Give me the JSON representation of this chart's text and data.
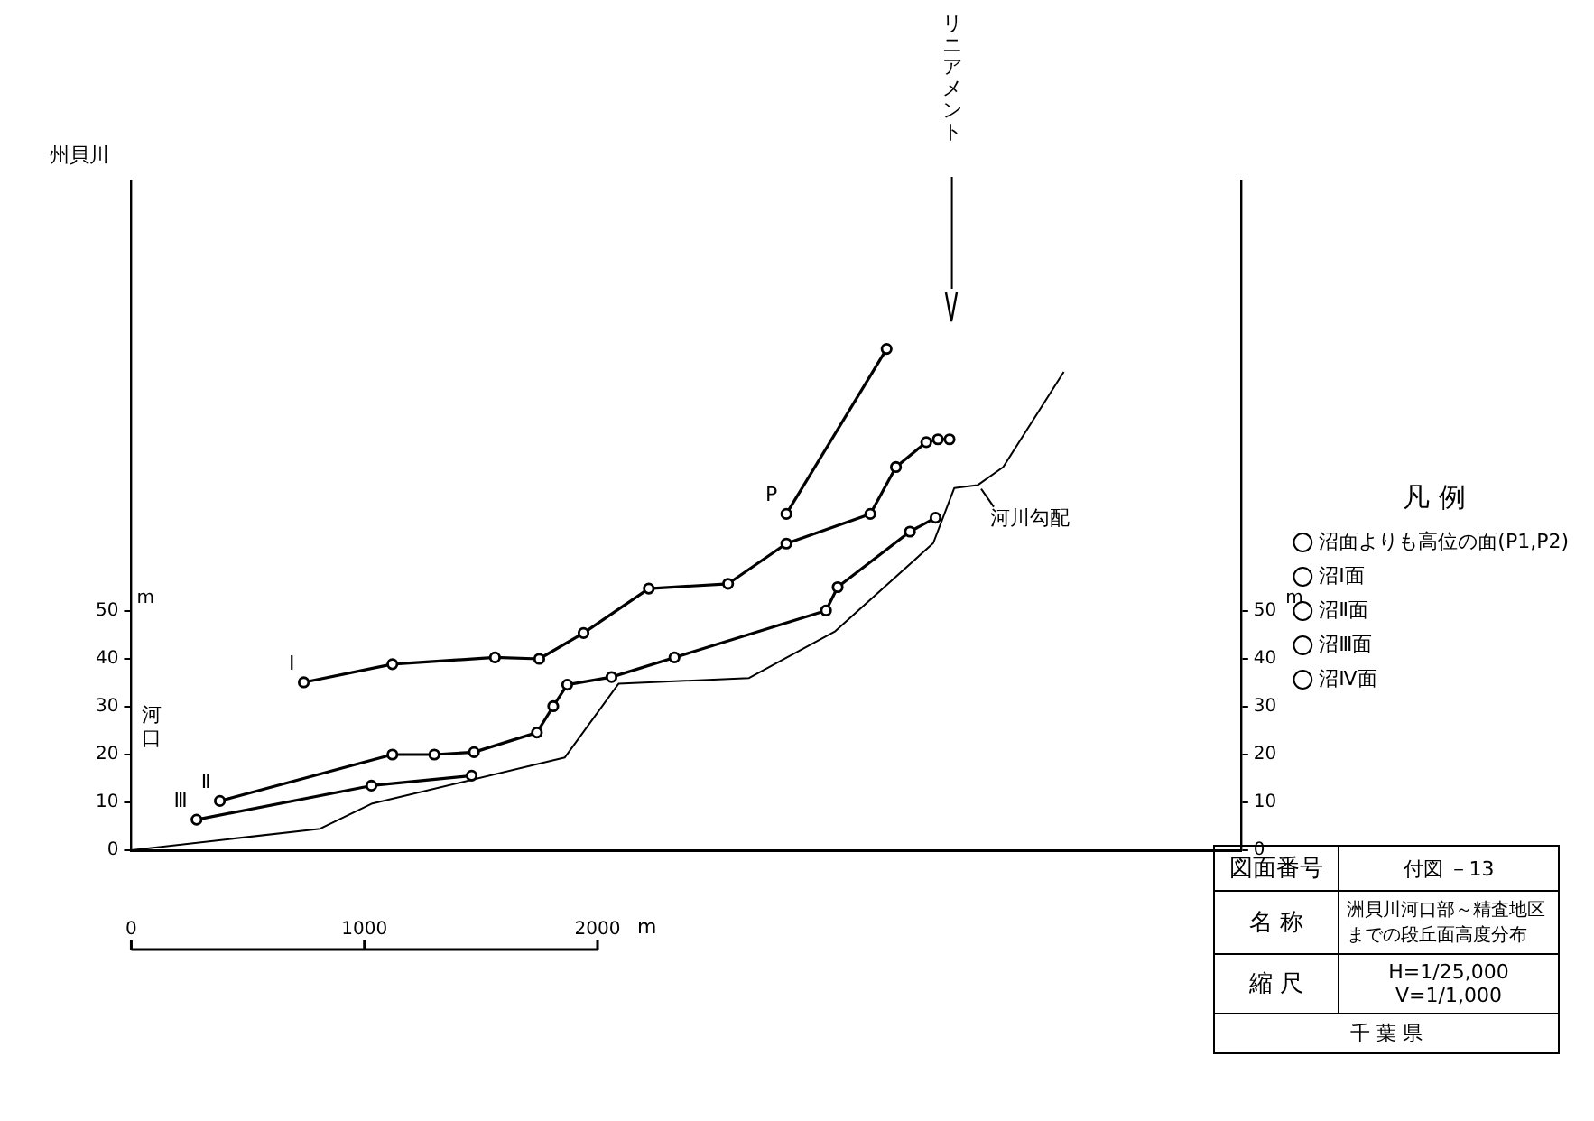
{
  "chart_data": {
    "type": "line",
    "title": "洲貝川河口部～精査地区までの段丘面高度分布",
    "xlabel": "m",
    "ylabel": "m",
    "y2label": "m",
    "legend_title": "凡 例",
    "legend": "right",
    "grid": false,
    "marker": "circle",
    "line_style": "solid",
    "xlim": [
      0,
      4760
    ],
    "xticks": [
      0,
      1000,
      2000
    ],
    "ylim": [
      0,
      140
    ],
    "yticks": [
      0,
      10,
      20,
      30,
      40,
      50
    ],
    "y2lim": [
      0,
      140
    ],
    "y2ticks": [
      0,
      10,
      20,
      30,
      40,
      50
    ],
    "series": [
      {
        "name": "沼面よりも高位の面(P1,P2)",
        "color": "#000000",
        "x": [
          2810,
          3240
        ],
        "values": [
          70.3,
          104.8
        ]
      },
      {
        "name": "沼Ⅰ面",
        "color": "#000000",
        "x": [
          740,
          1120,
          1560,
          1750,
          1940,
          2220,
          2560,
          2810,
          3170,
          3280,
          3410,
          3460,
          3510
        ],
        "values": [
          35.1,
          38.9,
          40.3,
          40,
          45.4,
          54.7,
          55.7,
          64.1,
          70.3,
          80.1,
          85.3,
          85.9,
          85.9
        ]
      },
      {
        "name": "沼Ⅱ面",
        "color": "#000000",
        "x": [
          380,
          1120,
          1300,
          1470,
          1740,
          1810,
          1870,
          2060,
          2330,
          2980,
          3030,
          3340,
          3450
        ],
        "values": [
          10.3,
          20,
          20,
          20.5,
          24.6,
          30.1,
          34.6,
          36.2,
          40.3,
          50.1,
          55,
          66.6,
          69.5
        ]
      },
      {
        "name": "沼Ⅲ面",
        "color": "#000000",
        "x": [
          280,
          1030,
          1460
        ],
        "values": [
          6.4,
          13.5,
          15.6
        ]
      },
      {
        "name": "沼Ⅳ面",
        "color": "#000000"
      },
      {
        "name": "河川勾配",
        "color": "#000000",
        "marker": "none",
        "x": [
          0,
          810,
          1030,
          1860,
          2090,
          2650,
          3020,
          3440,
          3530,
          3630,
          3740,
          4000
        ],
        "values": [
          0,
          4.5,
          9.7,
          19.4,
          34.8,
          36,
          45.8,
          64.2,
          75.7,
          76.3,
          80.1,
          100
        ]
      }
    ],
    "ref_lines": [
      {
        "axis": "x",
        "value": 3520,
        "label": "リニアメント"
      }
    ],
    "annotations": [
      "図面番号",
      "付図 －13",
      "名 称",
      "縮 尺",
      "H=1/25,000 V=1/1,000",
      "千 葉 県",
      "P",
      "Ⅰ",
      "Ⅱ",
      "Ⅲ",
      "河口",
      "州貝川"
    ]
  }
}
